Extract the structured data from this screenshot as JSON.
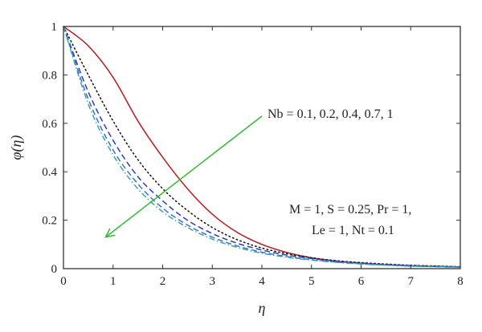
{
  "chart_data": {
    "type": "line",
    "xlabel": "η",
    "ylabel": "φ(η)",
    "xlim": [
      0,
      8
    ],
    "ylim": [
      0,
      1
    ],
    "x_ticks": [
      0,
      1,
      2,
      3,
      4,
      5,
      6,
      7,
      8
    ],
    "y_ticks": [
      0,
      0.2,
      0.4,
      0.6,
      0.8,
      1
    ],
    "x_tick_labels": [
      "0",
      "1",
      "2",
      "3",
      "4",
      "5",
      "6",
      "7",
      "8"
    ],
    "y_tick_labels": [
      "0",
      "0.2",
      "0.4",
      "0.6",
      "0.8",
      "1"
    ],
    "grid": false,
    "x": [
      0,
      0.5,
      1,
      1.5,
      2,
      2.5,
      3,
      3.5,
      4,
      4.5,
      5,
      5.5,
      6,
      6.5,
      7,
      7.5,
      8
    ],
    "series": [
      {
        "values": [
          1.0,
          0.92,
          0.79,
          0.61,
          0.46,
          0.33,
          0.225,
          0.15,
          0.1,
          0.067,
          0.045,
          0.031,
          0.022,
          0.016,
          0.012,
          0.009,
          0.007
        ],
        "color": "#b2282b",
        "style": "solid"
      },
      {
        "values": [
          1.0,
          0.8,
          0.61,
          0.45,
          0.33,
          0.24,
          0.17,
          0.12,
          0.085,
          0.062,
          0.045,
          0.033,
          0.025,
          0.019,
          0.014,
          0.011,
          0.008
        ],
        "color": "#111111",
        "style": "dotted"
      },
      {
        "values": [
          1.0,
          0.73,
          0.53,
          0.38,
          0.28,
          0.2,
          0.145,
          0.105,
          0.077,
          0.056,
          0.042,
          0.031,
          0.023,
          0.017,
          0.013,
          0.01,
          0.007
        ],
        "color": "#2a3fb5",
        "style": "dashed"
      },
      {
        "values": [
          1.0,
          0.7,
          0.49,
          0.35,
          0.25,
          0.18,
          0.13,
          0.094,
          0.068,
          0.05,
          0.037,
          0.027,
          0.02,
          0.015,
          0.011,
          0.008,
          0.006
        ],
        "color": "#3e6fd8",
        "style": "dashed"
      },
      {
        "values": [
          1.0,
          0.68,
          0.47,
          0.33,
          0.235,
          0.17,
          0.122,
          0.088,
          0.064,
          0.047,
          0.035,
          0.026,
          0.019,
          0.014,
          0.01,
          0.008,
          0.006
        ],
        "color": "#3aa6a6",
        "style": "dashdot"
      }
    ],
    "annotations": {
      "nb_label": "Nb = 0.1, 0.2, 0.4, 0.7, 1",
      "params_line1": "M = 1, S = 0.25, Pr = 1,",
      "params_line2": "Le = 1, Nt = 0.1",
      "arrow_color": "#33bb33",
      "arrow_from": [
        4.0,
        0.63
      ],
      "arrow_to": [
        0.85,
        0.13
      ]
    }
  }
}
